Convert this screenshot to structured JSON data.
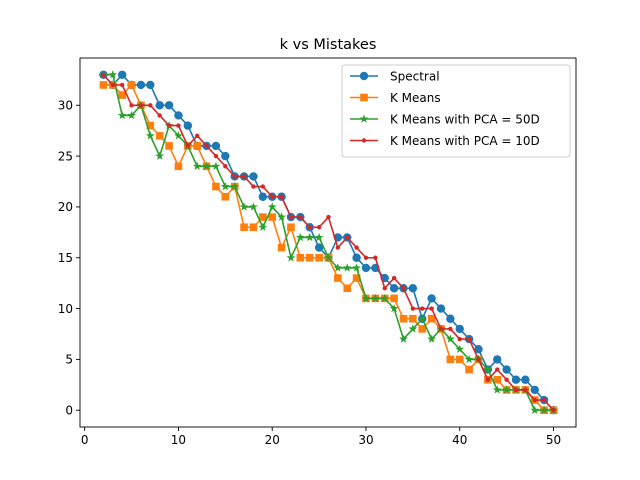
{
  "chart_data": {
    "type": "line",
    "title": "k vs Mistakes",
    "xlabel": "",
    "ylabel": "",
    "xlim": [
      -0.5,
      52.4
    ],
    "ylim": [
      -1.65,
      34.65
    ],
    "xticks": [
      0,
      10,
      20,
      30,
      40,
      50
    ],
    "yticks": [
      0,
      5,
      10,
      15,
      20,
      25,
      30
    ],
    "grid": false,
    "legend_position": "top-right",
    "x": [
      2,
      3,
      4,
      5,
      6,
      7,
      8,
      9,
      10,
      11,
      12,
      13,
      14,
      15,
      16,
      17,
      18,
      19,
      20,
      21,
      22,
      23,
      24,
      25,
      26,
      27,
      28,
      29,
      30,
      31,
      32,
      33,
      34,
      35,
      36,
      37,
      38,
      39,
      40,
      41,
      42,
      43,
      44,
      45,
      46,
      47,
      48,
      49,
      50
    ],
    "series": [
      {
        "name": "Spectral",
        "color": "#1f77b4",
        "marker": "circle",
        "values": [
          33,
          32,
          33,
          32,
          32,
          32,
          30,
          30,
          29,
          28,
          26,
          26,
          26,
          25,
          23,
          23,
          23,
          21,
          21,
          21,
          19,
          19,
          18,
          16,
          15,
          17,
          17,
          15,
          14,
          14,
          13,
          12,
          12,
          12,
          9,
          11,
          10,
          9,
          8,
          7,
          6,
          4,
          5,
          4,
          3,
          3,
          2,
          1,
          0
        ]
      },
      {
        "name": "K Means",
        "color": "#ff7f0e",
        "marker": "square",
        "values": [
          32,
          32,
          31,
          32,
          30,
          28,
          27,
          26,
          24,
          26,
          26,
          24,
          22,
          21,
          22,
          18,
          18,
          19,
          19,
          16,
          18,
          15,
          15,
          15,
          15,
          13,
          12,
          13,
          11,
          11,
          11,
          11,
          9,
          9,
          8,
          9,
          8,
          5,
          5,
          4,
          5,
          3,
          3,
          2,
          2,
          2,
          1,
          0,
          0
        ]
      },
      {
        "name": "K Means with PCA = 50D",
        "color": "#2ca02c",
        "marker": "star",
        "values": [
          33,
          33,
          29,
          29,
          30,
          27,
          25,
          28,
          27,
          26,
          24,
          24,
          24,
          22,
          22,
          20,
          20,
          18,
          20,
          19,
          15,
          17,
          17,
          17,
          15,
          14,
          14,
          14,
          11,
          11,
          11,
          10,
          7,
          8,
          9,
          7,
          8,
          7,
          6,
          5,
          5,
          4,
          2,
          2,
          2,
          2,
          0,
          0,
          0
        ]
      },
      {
        "name": "K Means with PCA = 10D",
        "color": "#d62728",
        "marker": "point",
        "values": [
          33,
          32,
          32,
          30,
          30,
          30,
          29,
          28,
          28,
          26,
          27,
          26,
          25,
          24,
          23,
          23,
          22,
          22,
          21,
          21,
          19,
          19,
          18,
          18,
          19,
          16,
          17,
          16,
          15,
          15,
          12,
          13,
          12,
          10,
          10,
          10,
          8,
          8,
          7,
          7,
          5,
          3,
          4,
          3,
          2,
          2,
          1,
          1,
          0
        ]
      }
    ]
  }
}
